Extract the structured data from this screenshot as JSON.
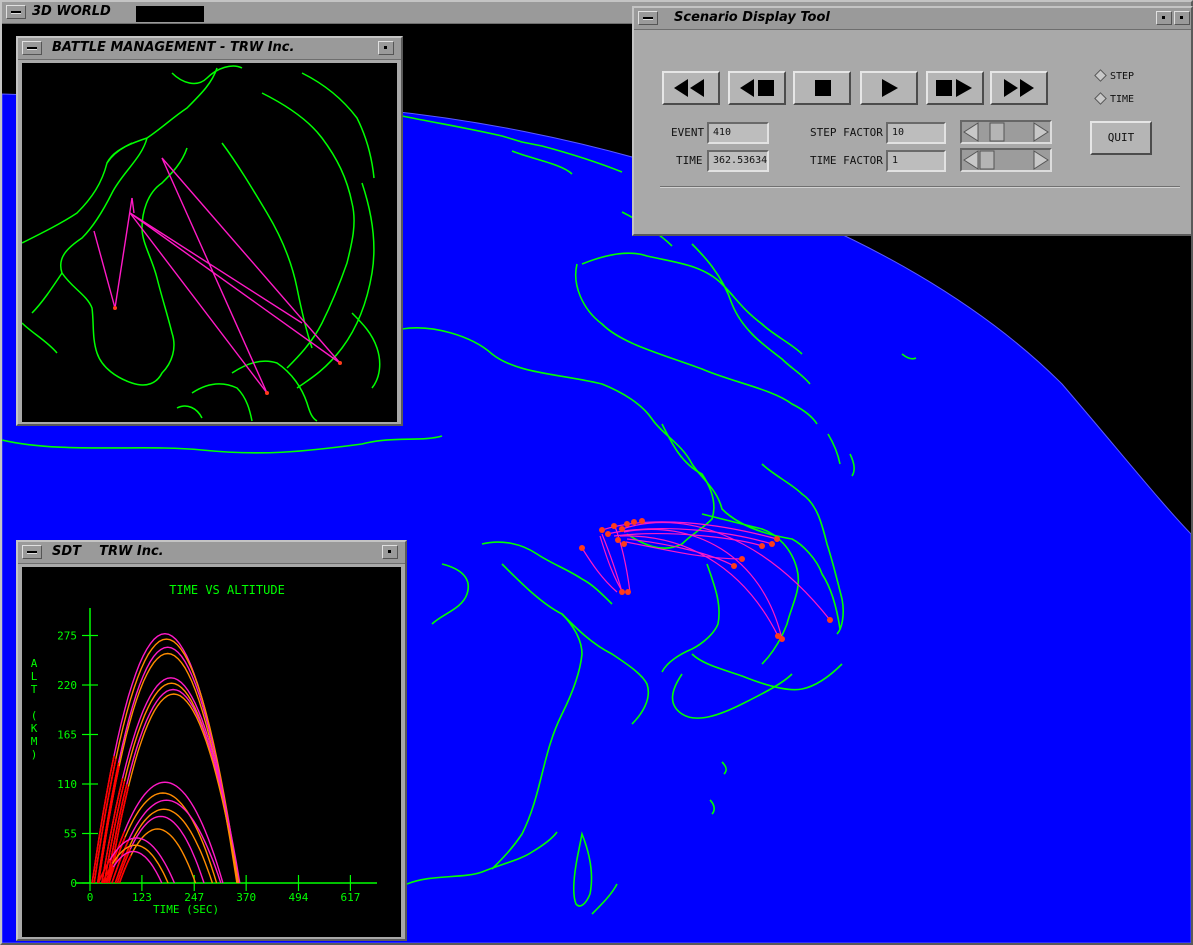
{
  "main_window": {
    "title": "3D WORLD"
  },
  "battle_window": {
    "title": "BATTLE MANAGEMENT - TRW Inc."
  },
  "sdt_window": {
    "title": "SDT    TRW Inc."
  },
  "scenario_tool": {
    "title": "Scenario Display Tool",
    "buttons": [
      {
        "name": "rewind",
        "icon": "rewind-icon"
      },
      {
        "name": "step-back",
        "icon": "step-back-icon"
      },
      {
        "name": "stop",
        "icon": "stop-icon"
      },
      {
        "name": "play",
        "icon": "play-icon"
      },
      {
        "name": "step-forward",
        "icon": "step-forward-icon"
      },
      {
        "name": "fast-forward",
        "icon": "fast-forward-icon"
      }
    ],
    "mode_options": [
      "STEP",
      "TIME"
    ],
    "event_label": "EVENT",
    "event_value": "410",
    "time_label": "TIME",
    "time_value": "362.53634",
    "step_factor_label": "STEP FACTOR",
    "step_factor_value": "10",
    "time_factor_label": "TIME FACTOR",
    "time_factor_value": "1",
    "quit_label": "QUIT"
  },
  "chart_data": {
    "type": "line",
    "title": "TIME VS ALTITUDE",
    "xlabel": "TIME (SEC)",
    "ylabel": "ALT (KM)",
    "xlim": [
      0,
      680
    ],
    "ylim": [
      0,
      290
    ],
    "x_ticks": [
      0,
      123,
      247,
      370,
      494,
      617
    ],
    "y_ticks": [
      0,
      55,
      110,
      165,
      220,
      275
    ],
    "grid": false,
    "colors": {
      "axis": "#00ff00",
      "trajectory_a": "#ff1ac6",
      "trajectory_b": "#ff8c00",
      "boost": "#ff0000"
    },
    "series": [
      {
        "type": "arc",
        "start": 5,
        "end": 350,
        "apogee": 277
      },
      {
        "type": "arc",
        "start": 10,
        "end": 352,
        "apogee": 271
      },
      {
        "type": "arc",
        "start": 18,
        "end": 350,
        "apogee": 262
      },
      {
        "type": "arc",
        "start": 20,
        "end": 348,
        "apogee": 255
      },
      {
        "type": "arc",
        "start": 28,
        "end": 355,
        "apogee": 228
      },
      {
        "type": "arc",
        "start": 34,
        "end": 352,
        "apogee": 222
      },
      {
        "type": "arc",
        "start": 40,
        "end": 354,
        "apogee": 215
      },
      {
        "type": "arc",
        "start": 45,
        "end": 352,
        "apogee": 210
      },
      {
        "type": "arc",
        "start": 40,
        "end": 315,
        "apogee": 112
      },
      {
        "type": "arc",
        "start": 45,
        "end": 300,
        "apogee": 100
      },
      {
        "type": "arc",
        "start": 52,
        "end": 310,
        "apogee": 92
      },
      {
        "type": "arc",
        "start": 60,
        "end": 290,
        "apogee": 82
      },
      {
        "type": "arc",
        "start": 65,
        "end": 270,
        "apogee": 74
      },
      {
        "type": "arc",
        "start": 70,
        "end": 250,
        "apogee": 60
      },
      {
        "type": "arc",
        "start": 20,
        "end": 200,
        "apogee": 50
      },
      {
        "type": "arc",
        "start": 30,
        "end": 185,
        "apogee": 42
      },
      {
        "type": "arc",
        "start": 35,
        "end": 170,
        "apogee": 35
      }
    ]
  }
}
